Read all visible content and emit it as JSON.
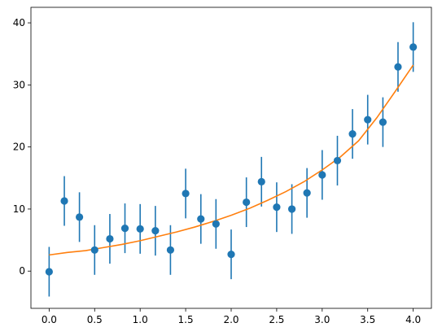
{
  "chart_data": {
    "type": "scatter",
    "title": "",
    "xlabel": "",
    "ylabel": "",
    "xlim": [
      -0.2,
      4.2
    ],
    "ylim": [
      -6,
      42.5
    ],
    "x_ticks": [
      0.0,
      0.5,
      1.0,
      1.5,
      2.0,
      2.5,
      3.0,
      3.5,
      4.0
    ],
    "x_tick_labels": [
      "0.0",
      "0.5",
      "1.0",
      "1.5",
      "2.0",
      "2.5",
      "3.0",
      "3.5",
      "4.0"
    ],
    "y_ticks": [
      0,
      10,
      20,
      30,
      40
    ],
    "y_tick_labels": [
      "0",
      "10",
      "20",
      "30",
      "40"
    ],
    "grid": false,
    "series": [
      {
        "kind": "errorbar",
        "color": "#1f77b4",
        "x": [
          0.0,
          0.167,
          0.333,
          0.5,
          0.667,
          0.833,
          1.0,
          1.167,
          1.333,
          1.5,
          1.667,
          1.833,
          2.0,
          2.167,
          2.333,
          2.5,
          2.667,
          2.833,
          3.0,
          3.167,
          3.333,
          3.5,
          3.667,
          3.833,
          4.0
        ],
        "y": [
          -0.1,
          11.3,
          8.7,
          3.4,
          5.2,
          6.9,
          6.8,
          6.5,
          3.4,
          12.5,
          8.4,
          7.6,
          2.7,
          11.1,
          14.4,
          10.3,
          10.0,
          12.6,
          15.5,
          17.8,
          22.1,
          24.4,
          24.0,
          32.9,
          36.1
        ],
        "yerr": 4
      },
      {
        "kind": "line",
        "color": "#ff7f0e",
        "x": [
          0.0,
          0.2,
          0.4,
          0.6,
          0.8,
          1.0,
          1.2,
          1.4,
          1.6,
          1.8,
          2.0,
          2.2,
          2.4,
          2.6,
          2.8,
          3.0,
          3.2,
          3.4,
          3.6,
          3.8,
          4.0
        ],
        "y": [
          2.6,
          3.0,
          3.3,
          3.8,
          4.3,
          4.9,
          5.6,
          6.3,
          7.1,
          8.0,
          9.0,
          10.1,
          11.4,
          12.8,
          14.4,
          16.3,
          18.4,
          21.0,
          24.7,
          28.9,
          33.2
        ]
      }
    ]
  }
}
